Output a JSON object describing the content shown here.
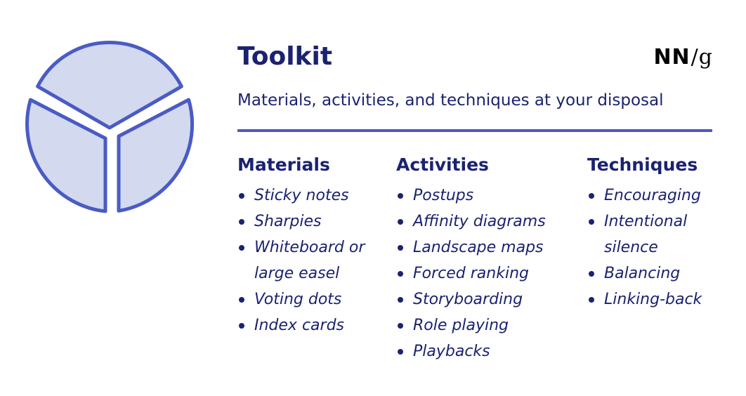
{
  "header": {
    "title": "Toolkit",
    "subtitle": "Materials, activities, and techniques at your disposal",
    "logo": {
      "nn": "NN",
      "slash": "/",
      "g": "g"
    }
  },
  "columns": [
    {
      "heading": "Materials",
      "items": [
        "Sticky notes",
        "Sharpies",
        "Whiteboard or large easel",
        "Voting dots",
        "Index cards"
      ]
    },
    {
      "heading": "Activities",
      "items": [
        "Postups",
        "Affinity diagrams",
        "Landscape maps",
        "Forced ranking",
        "Storyboarding",
        "Role playing",
        "Playbacks"
      ]
    },
    {
      "heading": "Techniques",
      "items": [
        "Encouraging",
        "Intentional silence",
        "Balancing",
        "Linking-back"
      ]
    }
  ],
  "pie_icon": {
    "icon": "three-segment-pie-icon",
    "fill_color": "#d3d9ef",
    "stroke_color": "#4a5bc4"
  },
  "colors": {
    "text": "#1b2270",
    "accent": "#4a5bc4",
    "logo": "#000000"
  }
}
